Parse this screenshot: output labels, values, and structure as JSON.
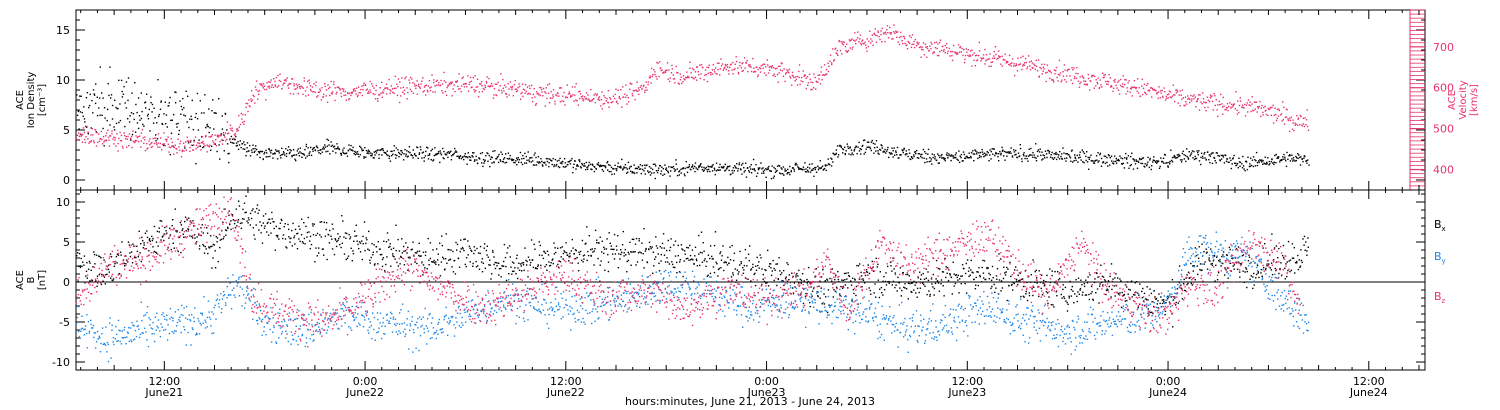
{
  "colors": {
    "black": "#000000",
    "magenta": "#e8336a",
    "blue": "#1a86e8"
  },
  "x_axis": {
    "caption": "hours:minutes, June 21, 2013 - June 24, 2013",
    "ticks": [
      {
        "t": 0.5,
        "time": "12:00",
        "date": "June21"
      },
      {
        "t": 1.0,
        "time": "0:00",
        "date": "June22"
      },
      {
        "t": 1.5,
        "time": "12:00",
        "date": "June22"
      },
      {
        "t": 2.0,
        "time": "0:00",
        "date": "June23"
      },
      {
        "t": 2.5,
        "time": "12:00",
        "date": "June23"
      },
      {
        "t": 3.0,
        "time": "0:00",
        "date": "June24"
      },
      {
        "t": 3.5,
        "time": "12:00",
        "date": "June24"
      }
    ]
  },
  "chart_data": [
    {
      "type": "scatter",
      "panel": "top",
      "xlim_days_from_june21_0000": [
        0.28,
        3.64
      ],
      "y_left": {
        "label_lines": [
          "ACE",
          "Ion Density",
          "[cm⁻³]"
        ],
        "ylim": [
          -1,
          17
        ],
        "ticks": [
          0,
          5,
          10,
          15
        ]
      },
      "y_right": {
        "label_lines": [
          "ACE",
          "Velocity",
          "[km/s]"
        ],
        "ylim": [
          350,
          790
        ],
        "ticks": [
          400,
          500,
          600,
          700
        ]
      },
      "series": [
        {
          "axis": "left",
          "color": "black",
          "points": [
            [
              0.28,
              7.0
            ],
            [
              0.35,
              7.5
            ],
            [
              0.45,
              6.8
            ],
            [
              0.55,
              6.0
            ],
            [
              0.62,
              5.0
            ],
            [
              0.66,
              4.2
            ],
            [
              0.7,
              3.2
            ],
            [
              0.75,
              2.6
            ],
            [
              0.85,
              2.7
            ],
            [
              0.9,
              3.3
            ],
            [
              1.0,
              2.8
            ],
            [
              1.1,
              2.7
            ],
            [
              1.2,
              2.6
            ],
            [
              1.3,
              2.3
            ],
            [
              1.45,
              2.0
            ],
            [
              1.55,
              1.5
            ],
            [
              1.65,
              1.2
            ],
            [
              1.75,
              1.1
            ],
            [
              1.85,
              1.4
            ],
            [
              1.95,
              1.1
            ],
            [
              2.05,
              1.1
            ],
            [
              2.15,
              1.3
            ],
            [
              2.18,
              3.2
            ],
            [
              2.25,
              3.5
            ],
            [
              2.35,
              2.6
            ],
            [
              2.45,
              2.3
            ],
            [
              2.55,
              2.6
            ],
            [
              2.65,
              2.7
            ],
            [
              2.75,
              2.4
            ],
            [
              2.85,
              2.1
            ],
            [
              2.95,
              1.8
            ],
            [
              3.0,
              2.0
            ],
            [
              3.05,
              2.6
            ],
            [
              3.1,
              2.5
            ],
            [
              3.18,
              1.7
            ],
            [
              3.3,
              2.2
            ],
            [
              3.35,
              2.0
            ]
          ]
        },
        {
          "axis": "right",
          "color": "magenta",
          "points": [
            [
              0.28,
              490
            ],
            [
              0.35,
              480
            ],
            [
              0.45,
              470
            ],
            [
              0.55,
              460
            ],
            [
              0.62,
              470
            ],
            [
              0.68,
              500
            ],
            [
              0.72,
              590
            ],
            [
              0.78,
              620
            ],
            [
              0.85,
              600
            ],
            [
              0.95,
              590
            ],
            [
              1.05,
              600
            ],
            [
              1.15,
              605
            ],
            [
              1.25,
              610
            ],
            [
              1.35,
              600
            ],
            [
              1.45,
              585
            ],
            [
              1.55,
              580
            ],
            [
              1.62,
              575
            ],
            [
              1.7,
              605
            ],
            [
              1.72,
              650
            ],
            [
              1.8,
              630
            ],
            [
              1.9,
              655
            ],
            [
              2.0,
              650
            ],
            [
              2.05,
              640
            ],
            [
              2.12,
              610
            ],
            [
              2.18,
              700
            ],
            [
              2.25,
              720
            ],
            [
              2.3,
              740
            ],
            [
              2.38,
              705
            ],
            [
              2.45,
              695
            ],
            [
              2.55,
              675
            ],
            [
              2.65,
              655
            ],
            [
              2.75,
              635
            ],
            [
              2.85,
              615
            ],
            [
              2.95,
              595
            ],
            [
              3.0,
              580
            ],
            [
              3.1,
              565
            ],
            [
              3.2,
              555
            ],
            [
              3.28,
              535
            ],
            [
              3.32,
              515
            ],
            [
              3.35,
              525
            ]
          ]
        }
      ]
    },
    {
      "type": "scatter",
      "panel": "bottom",
      "xlim_days_from_june21_0000": [
        0.28,
        3.64
      ],
      "y_left": {
        "label_lines": [
          "ACE",
          "B",
          "[nT]"
        ],
        "ylim": [
          -11,
          11.5
        ],
        "ticks": [
          -10,
          -5,
          0,
          5,
          10
        ]
      },
      "reference_line": 0,
      "series": [
        {
          "name": "Bx",
          "color": "black",
          "points": [
            [
              0.28,
              3
            ],
            [
              0.35,
              1
            ],
            [
              0.45,
              5
            ],
            [
              0.55,
              7
            ],
            [
              0.62,
              4
            ],
            [
              0.68,
              9
            ],
            [
              0.75,
              7
            ],
            [
              0.85,
              6
            ],
            [
              0.95,
              5
            ],
            [
              1.05,
              4
            ],
            [
              1.15,
              3
            ],
            [
              1.25,
              4
            ],
            [
              1.35,
              2
            ],
            [
              1.45,
              3
            ],
            [
              1.55,
              4
            ],
            [
              1.65,
              4
            ],
            [
              1.75,
              3.5
            ],
            [
              1.85,
              3
            ],
            [
              1.95,
              2
            ],
            [
              2.05,
              1
            ],
            [
              2.15,
              -1
            ],
            [
              2.25,
              1
            ],
            [
              2.35,
              0
            ],
            [
              2.45,
              0.5
            ],
            [
              2.55,
              1
            ],
            [
              2.65,
              0
            ],
            [
              2.75,
              -1
            ],
            [
              2.85,
              0
            ],
            [
              2.95,
              -2
            ],
            [
              3.0,
              -3
            ],
            [
              3.05,
              1
            ],
            [
              3.1,
              3
            ],
            [
              3.2,
              2
            ],
            [
              3.3,
              3
            ],
            [
              3.35,
              4
            ]
          ]
        },
        {
          "name": "By",
          "color": "blue",
          "points": [
            [
              0.28,
              -5
            ],
            [
              0.35,
              -7
            ],
            [
              0.45,
              -6
            ],
            [
              0.55,
              -5
            ],
            [
              0.62,
              -4
            ],
            [
              0.68,
              0
            ],
            [
              0.75,
              -5
            ],
            [
              0.85,
              -6
            ],
            [
              0.95,
              -4
            ],
            [
              1.05,
              -5
            ],
            [
              1.15,
              -6
            ],
            [
              1.25,
              -4
            ],
            [
              1.35,
              -2
            ],
            [
              1.45,
              -3
            ],
            [
              1.55,
              -3
            ],
            [
              1.65,
              -2
            ],
            [
              1.75,
              0
            ],
            [
              1.85,
              -1
            ],
            [
              1.95,
              -3
            ],
            [
              2.05,
              -2
            ],
            [
              2.15,
              -3
            ],
            [
              2.25,
              -4
            ],
            [
              2.35,
              -6
            ],
            [
              2.45,
              -5
            ],
            [
              2.55,
              -3
            ],
            [
              2.65,
              -5
            ],
            [
              2.75,
              -6
            ],
            [
              2.85,
              -5
            ],
            [
              2.95,
              -4
            ],
            [
              3.0,
              -3
            ],
            [
              3.05,
              4
            ],
            [
              3.1,
              4
            ],
            [
              3.2,
              3
            ],
            [
              3.28,
              -2
            ],
            [
              3.35,
              -5
            ]
          ]
        },
        {
          "name": "Bz",
          "color": "magenta",
          "points": [
            [
              0.28,
              -2
            ],
            [
              0.35,
              2
            ],
            [
              0.45,
              3
            ],
            [
              0.55,
              6
            ],
            [
              0.62,
              8
            ],
            [
              0.66,
              10
            ],
            [
              0.72,
              -2
            ],
            [
              0.8,
              -4
            ],
            [
              0.9,
              -5
            ],
            [
              1.0,
              -2
            ],
            [
              1.1,
              2
            ],
            [
              1.2,
              -1
            ],
            [
              1.3,
              -3
            ],
            [
              1.4,
              -1
            ],
            [
              1.5,
              1
            ],
            [
              1.6,
              -2
            ],
            [
              1.7,
              -1
            ],
            [
              1.8,
              -3
            ],
            [
              1.9,
              -1
            ],
            [
              2.0,
              -2
            ],
            [
              2.1,
              -1
            ],
            [
              2.15,
              3
            ],
            [
              2.2,
              -4
            ],
            [
              2.28,
              5
            ],
            [
              2.35,
              2
            ],
            [
              2.45,
              4
            ],
            [
              2.55,
              6
            ],
            [
              2.62,
              2
            ],
            [
              2.7,
              -2
            ],
            [
              2.78,
              5
            ],
            [
              2.85,
              -1
            ],
            [
              2.95,
              -4
            ],
            [
              3.0,
              -4
            ],
            [
              3.05,
              0
            ],
            [
              3.12,
              -1
            ],
            [
              3.2,
              5
            ],
            [
              3.28,
              3
            ],
            [
              3.33,
              -4
            ]
          ]
        }
      ],
      "legend": {
        "placement": "right",
        "entries": [
          {
            "label": "B",
            "sub": "x",
            "color": "black"
          },
          {
            "label": "B",
            "sub": "y",
            "color": "blue"
          },
          {
            "label": "B",
            "sub": "z",
            "color": "magenta"
          }
        ]
      }
    }
  ]
}
